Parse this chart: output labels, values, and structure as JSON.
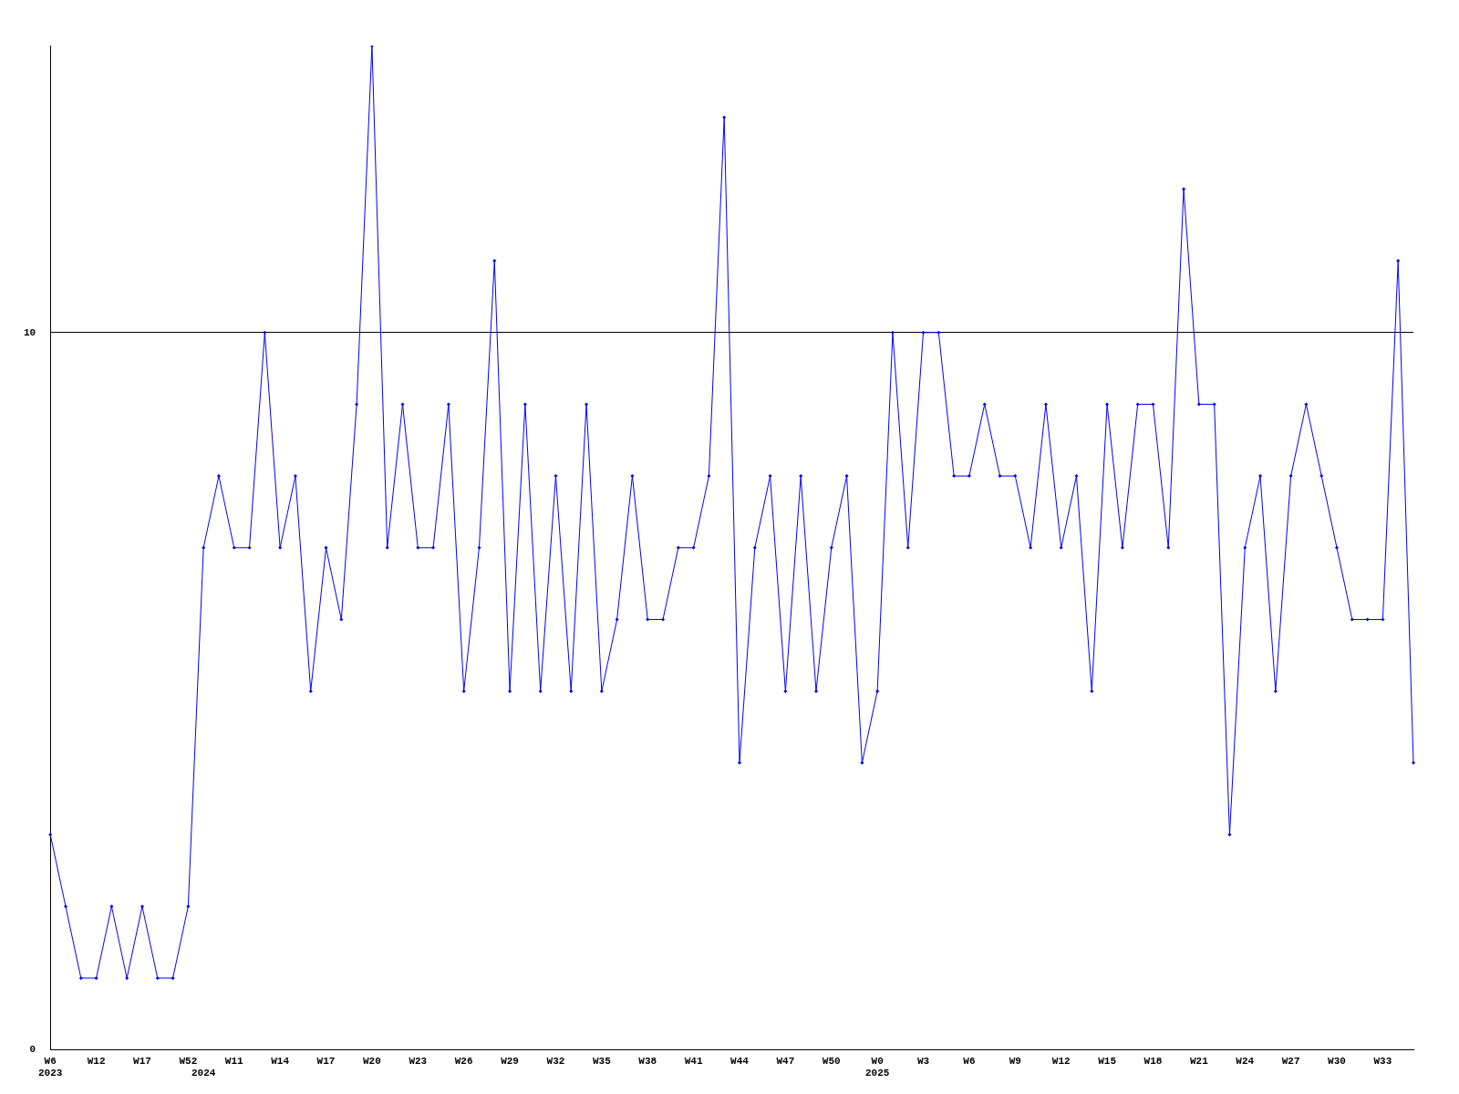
{
  "chart_data": {
    "type": "line",
    "categories": [
      "W6\n2023",
      null,
      null,
      "W12",
      null,
      null,
      "W17",
      null,
      null,
      "W52",
      "\n2024",
      null,
      "W11",
      null,
      null,
      "W14",
      null,
      null,
      "W17",
      null,
      null,
      "W20",
      null,
      null,
      "W23",
      null,
      null,
      "W26",
      null,
      null,
      "W29",
      null,
      null,
      "W32",
      null,
      null,
      "W35",
      null,
      null,
      "W38",
      null,
      null,
      "W41",
      null,
      null,
      "W44",
      null,
      null,
      "W47",
      null,
      null,
      "W50",
      null,
      null,
      "W0\n2025",
      null,
      null,
      "W3",
      null,
      null,
      "W6",
      null,
      null,
      "W9",
      null,
      null,
      "W12",
      null,
      null,
      "W15",
      null,
      null,
      "W18",
      null,
      null,
      "W21",
      null,
      null,
      "W24",
      null,
      null,
      "W27",
      null,
      null,
      "W30",
      null,
      null,
      "W33",
      null,
      null
    ],
    "series": [
      {
        "color": "#0000ff",
        "values": [
          3,
          2,
          1,
          1,
          2,
          1,
          2,
          1,
          1,
          2,
          7,
          8,
          7,
          7,
          10,
          7,
          8,
          5,
          7,
          6,
          9,
          14,
          7,
          9,
          7,
          7,
          9,
          5,
          7,
          11,
          5,
          9,
          5,
          8,
          5,
          9,
          5,
          6,
          8,
          6,
          6,
          7,
          7,
          8,
          13,
          4,
          7,
          8,
          5,
          8,
          5,
          7,
          8,
          4,
          5,
          10,
          7,
          10,
          10,
          8,
          8,
          9,
          8,
          8,
          7,
          9,
          7,
          8,
          5,
          9,
          7,
          9,
          9,
          7,
          12,
          9,
          9,
          3,
          7,
          8,
          5,
          8,
          9,
          8,
          7,
          6,
          6,
          6,
          11,
          4
        ]
      }
    ],
    "ylim": [
      0,
      14
    ],
    "yticks": [
      0,
      10
    ],
    "grid": "y",
    "legend": false,
    "marker": "diamond"
  }
}
